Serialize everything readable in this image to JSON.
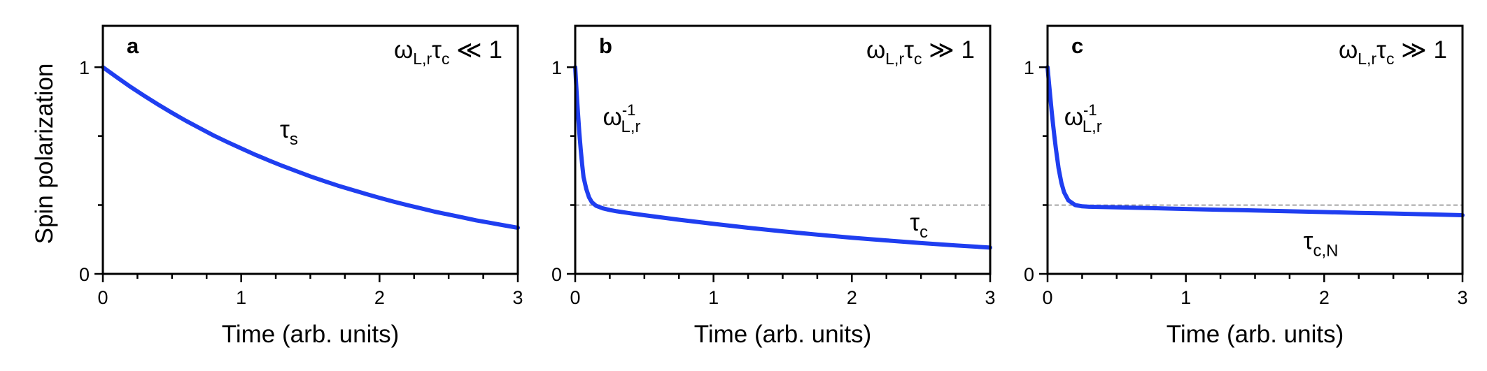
{
  "figure": {
    "y_axis_title": "Spin polarization",
    "curve_color": "#1f3ef0",
    "reference_line_color": "#7f7f7f"
  },
  "chart_data": [
    {
      "type": "line",
      "panel_label": "a",
      "title": "",
      "regime": {
        "prefix": "ω",
        "prefix_sub": "L,r",
        "mid": "τ",
        "mid_sub": "c",
        "relation": " ≪ 1"
      },
      "xlabel": "Time (arb. units)",
      "ylabel": "Spin polarization",
      "xlim": [
        0,
        3
      ],
      "ylim": [
        0,
        1.2
      ],
      "x_ticks": [
        0,
        1,
        2,
        3
      ],
      "x_minor_ticks": [
        0.25,
        0.5,
        0.75,
        1.25,
        1.5,
        1.75,
        2.25,
        2.5,
        2.75
      ],
      "y_ticks": [
        0,
        1
      ],
      "y_minor_ticks": [
        0.333,
        0.667
      ],
      "grid": false,
      "reference_line": null,
      "series": [
        {
          "x": [
            0,
            0.1,
            0.2,
            0.3,
            0.4,
            0.5,
            0.6,
            0.7,
            0.8,
            0.9,
            1.0,
            1.1,
            1.2,
            1.3,
            1.4,
            1.5,
            1.6,
            1.7,
            1.8,
            1.9,
            2.0,
            2.1,
            2.2,
            2.3,
            2.4,
            2.5,
            2.6,
            2.7,
            2.8,
            2.9,
            3.0
          ],
          "y": [
            1.0,
            0.952,
            0.905,
            0.861,
            0.819,
            0.779,
            0.741,
            0.705,
            0.67,
            0.638,
            0.607,
            0.577,
            0.549,
            0.522,
            0.497,
            0.472,
            0.449,
            0.427,
            0.407,
            0.387,
            0.368,
            0.35,
            0.333,
            0.317,
            0.301,
            0.287,
            0.273,
            0.259,
            0.247,
            0.235,
            0.223
          ]
        }
      ],
      "annotations": [
        {
          "main": "τ",
          "sub": "s",
          "sup": "",
          "x": 1.28,
          "y": 0.66
        }
      ]
    },
    {
      "type": "line",
      "panel_label": "b",
      "title": "",
      "regime": {
        "prefix": "ω",
        "prefix_sub": "L,r",
        "mid": "τ",
        "mid_sub": "c",
        "relation": " ≫ 1"
      },
      "xlabel": "Time (arb. units)",
      "ylabel": "",
      "xlim": [
        0,
        3
      ],
      "ylim": [
        0,
        1.2
      ],
      "x_ticks": [
        0,
        1,
        2,
        3
      ],
      "x_minor_ticks": [
        0.25,
        0.5,
        0.75,
        1.25,
        1.5,
        1.75,
        2.25,
        2.5,
        2.75
      ],
      "y_ticks": [
        0,
        1
      ],
      "y_minor_ticks": [
        0.333,
        0.667
      ],
      "grid": false,
      "reference_line": 0.333,
      "series": [
        {
          "x": [
            0,
            0.01,
            0.02,
            0.03,
            0.04,
            0.05,
            0.06,
            0.08,
            0.1,
            0.12,
            0.15,
            0.2,
            0.25,
            0.3,
            0.4,
            0.5,
            0.75,
            1.0,
            1.25,
            1.5,
            1.75,
            2.0,
            2.25,
            2.5,
            2.75,
            3.0
          ],
          "y": [
            1.0,
            0.88,
            0.775,
            0.682,
            0.601,
            0.53,
            0.468,
            0.411,
            0.37,
            0.347,
            0.33,
            0.317,
            0.309,
            0.303,
            0.293,
            0.284,
            0.262,
            0.242,
            0.223,
            0.206,
            0.19,
            0.175,
            0.162,
            0.149,
            0.138,
            0.127
          ]
        }
      ],
      "annotations": [
        {
          "main": "ω",
          "sub": "L,r",
          "sup": "-1",
          "x": 0.2,
          "y": 0.72
        },
        {
          "main": "τ",
          "sub": "c",
          "sup": "",
          "x": 2.42,
          "y": 0.21
        }
      ]
    },
    {
      "type": "line",
      "panel_label": "c",
      "title": "",
      "regime": {
        "prefix": "ω",
        "prefix_sub": "L,r",
        "mid": "τ",
        "mid_sub": "c",
        "relation": " ≫ 1"
      },
      "xlabel": "Time (arb. units)",
      "ylabel": "",
      "xlim": [
        0,
        3
      ],
      "ylim": [
        0,
        1.2
      ],
      "x_ticks": [
        0,
        1,
        2,
        3
      ],
      "x_minor_ticks": [
        0.25,
        0.5,
        0.75,
        1.25,
        1.5,
        1.75,
        2.25,
        2.5,
        2.75
      ],
      "y_ticks": [
        0,
        1
      ],
      "y_minor_ticks": [
        0.333,
        0.667
      ],
      "grid": false,
      "reference_line": 0.333,
      "series": [
        {
          "x": [
            0,
            0.01,
            0.02,
            0.03,
            0.04,
            0.05,
            0.06,
            0.08,
            0.1,
            0.12,
            0.15,
            0.2,
            0.25,
            0.3,
            0.5,
            0.75,
            1.0,
            1.25,
            1.5,
            1.75,
            2.0,
            2.25,
            2.5,
            2.75,
            3.0
          ],
          "y": [
            1.0,
            0.925,
            0.854,
            0.786,
            0.722,
            0.662,
            0.606,
            0.51,
            0.44,
            0.394,
            0.356,
            0.333,
            0.327,
            0.325,
            0.322,
            0.318,
            0.314,
            0.31,
            0.307,
            0.303,
            0.299,
            0.295,
            0.292,
            0.288,
            0.284
          ]
        }
      ],
      "annotations": [
        {
          "main": "ω",
          "sub": "L,r",
          "sup": "-1",
          "x": 0.12,
          "y": 0.72
        },
        {
          "main": "τ",
          "sub": "c,N",
          "sup": "",
          "x": 1.85,
          "y": 0.12
        }
      ]
    }
  ]
}
